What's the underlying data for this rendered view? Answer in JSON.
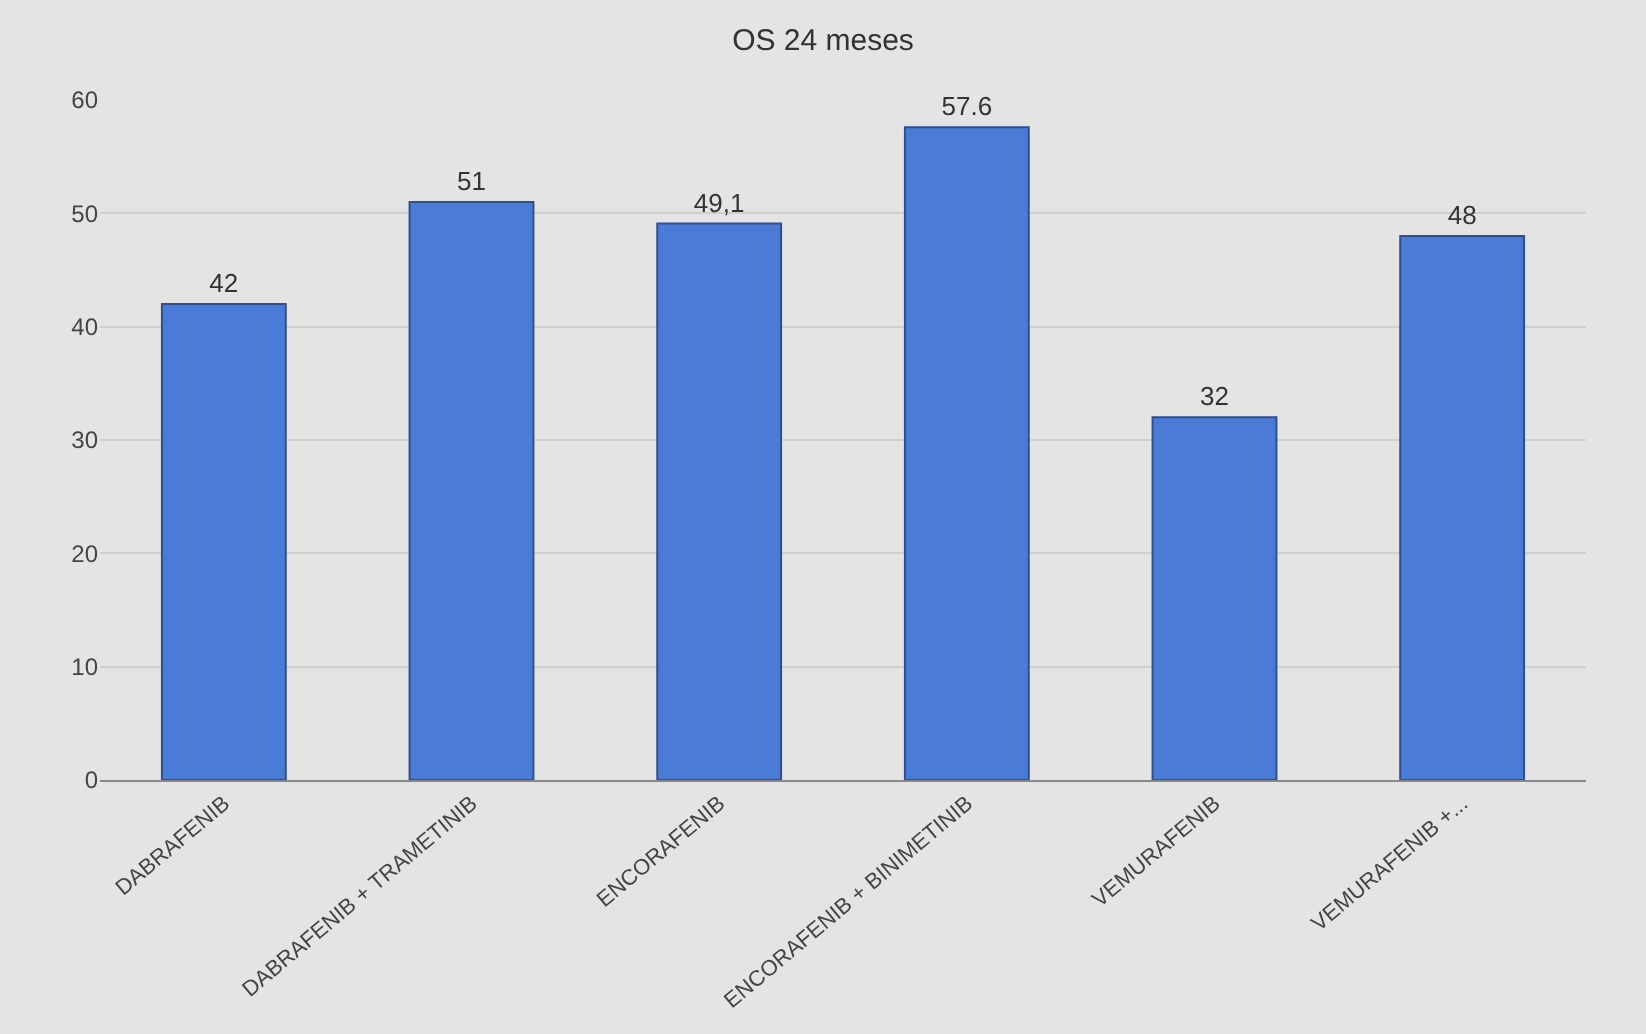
{
  "chart_data": {
    "type": "bar",
    "title": "OS 24 meses",
    "categories": [
      "DABRAFENIB",
      "DABRAFENIB + TRAMETINIB",
      "ENCORAFENIB",
      "ENCORAFENIB + BINIMETINIB",
      "VEMURAFENIB",
      "VEMURAFENIB +..."
    ],
    "values": [
      42,
      51,
      49.1,
      57.6,
      32,
      48
    ],
    "value_labels": [
      "42",
      "51",
      "49,1",
      "57.6",
      "32",
      "48"
    ],
    "color": "#4a7bd6",
    "ylim": [
      0,
      60
    ],
    "yticks": [
      0,
      10,
      20,
      30,
      40,
      50,
      60
    ],
    "grid": "y",
    "legend": false
  }
}
